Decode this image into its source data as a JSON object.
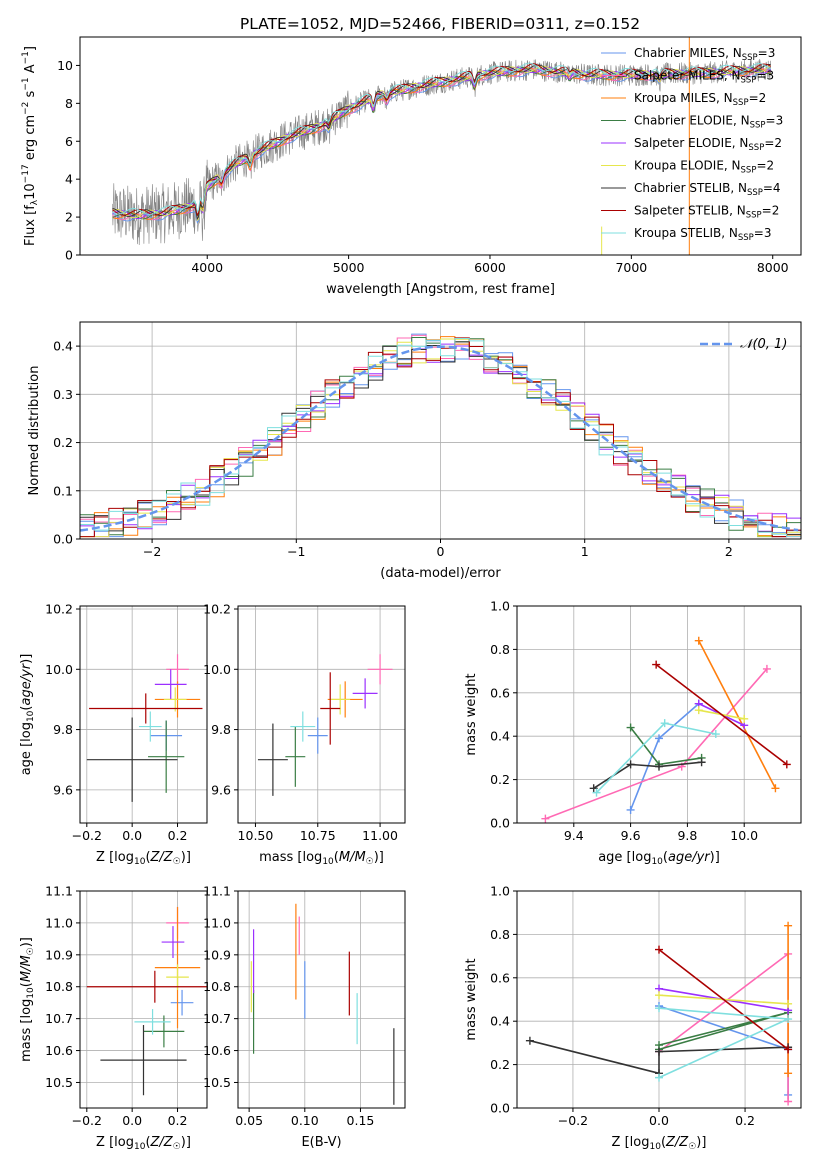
{
  "figure": {
    "title": "PLATE=1052, MJD=52466, FIBERID=0311, z=0.152"
  },
  "colors": {
    "models": [
      "#6495ed",
      "#ff69b4",
      "#ff7f0e",
      "#3a7d44",
      "#9b30ff",
      "#e6e64d",
      "#333333",
      "#aa0000",
      "#7fdfdf"
    ],
    "data": "#808080",
    "normal": "#6495ed",
    "grid": "#b0b0b0"
  },
  "chart_data": [
    {
      "id": "spectrum",
      "type": "line",
      "xlabel": "wavelength [Angstrom, rest frame]",
      "ylabel": "Flux [f_λ 10^-17 erg cm^-2 s^-1 A^-1]",
      "xlim": [
        3100,
        8200
      ],
      "ylim": [
        0,
        11.5
      ],
      "xticks": [
        4000,
        5000,
        6000,
        7000,
        8000
      ],
      "yticks": [
        0,
        2,
        4,
        6,
        8,
        10
      ],
      "grid": false,
      "legend": "right",
      "legend_entries": [
        "Chabrier MILES, N_SSP=3",
        "Salpeter MILES, N_SSP=3",
        "Kroupa MILES, N_SSP=2",
        "Chabrier ELODIE, N_SSP=3",
        "Salpeter ELODIE, N_SSP=2",
        "Kroupa ELODIE, N_SSP=2",
        "Chabrier STELIB, N_SSP=4",
        "Salpeter STELIB, N_SSP=2",
        "Kroupa STELIB, N_SSP=3"
      ],
      "continuum_points": [
        [
          3330,
          2.2
        ],
        [
          3500,
          2.1
        ],
        [
          3700,
          2.2
        ],
        [
          3900,
          2.6
        ],
        [
          4000,
          3.6
        ],
        [
          4200,
          4.8
        ],
        [
          4400,
          5.6
        ],
        [
          4600,
          6.3
        ],
        [
          4800,
          6.8
        ],
        [
          5000,
          7.7
        ],
        [
          5200,
          8.4
        ],
        [
          5500,
          8.9
        ],
        [
          6000,
          9.6
        ],
        [
          6300,
          9.8
        ],
        [
          6700,
          9.5
        ],
        [
          7000,
          9.5
        ],
        [
          7500,
          9.6
        ],
        [
          8000,
          9.8
        ]
      ]
    },
    {
      "id": "residuals",
      "type": "step",
      "xlabel": "(data-model)/error",
      "ylabel": "Normed distribution",
      "xlim": [
        -2.5,
        2.5
      ],
      "ylim": [
        0,
        0.45
      ],
      "xticks": [
        -2,
        -1,
        0,
        1,
        2
      ],
      "yticks": [
        0.0,
        0.1,
        0.2,
        0.3,
        0.4
      ],
      "grid": true,
      "legend": "top-right",
      "legend_entries": [
        "𝒩(0, 1)"
      ]
    },
    {
      "id": "age_vs_Z",
      "type": "errorbar",
      "xlabel": "Z [log10(Z/Z☉)]",
      "ylabel": "age [log10(age/yr)]",
      "xlim": [
        -0.23,
        0.33
      ],
      "ylim": [
        9.49,
        10.21
      ],
      "xticks": [
        -0.2,
        0.0,
        0.2
      ],
      "yticks": [
        9.6,
        9.8,
        10.0,
        10.2
      ],
      "grid": true,
      "points": [
        {
          "x": 0.15,
          "y": 9.78,
          "xerr": 0.07,
          "yerr": 0.05
        },
        {
          "x": 0.2,
          "y": 10.0,
          "xerr": 0.05,
          "yerr": 0.05
        },
        {
          "x": 0.2,
          "y": 9.9,
          "xerr": 0.1,
          "yerr": 0.06
        },
        {
          "x": 0.15,
          "y": 9.71,
          "xerr": 0.08,
          "yerr": 0.12
        },
        {
          "x": 0.17,
          "y": 9.95,
          "xerr": 0.07,
          "yerr": 0.05
        },
        {
          "x": 0.19,
          "y": 9.9,
          "xerr": 0.05,
          "yerr": 0.04
        },
        {
          "x": 0.0,
          "y": 9.7,
          "xerr": 0.2,
          "yerr": 0.14
        },
        {
          "x": 0.06,
          "y": 9.87,
          "xerr": 0.25,
          "yerr": 0.05
        },
        {
          "x": 0.08,
          "y": 9.81,
          "xerr": 0.05,
          "yerr": 0.05
        }
      ]
    },
    {
      "id": "age_vs_mass",
      "type": "errorbar",
      "xlabel": "mass [log10(M/M☉)]",
      "ylabel": "",
      "xlim": [
        10.43,
        11.1
      ],
      "ylim": [
        9.49,
        10.21
      ],
      "xticks": [
        10.5,
        10.75,
        11.0
      ],
      "yticks": [
        9.6,
        9.8,
        10.0,
        10.2
      ],
      "grid": true,
      "points": [
        {
          "x": 10.75,
          "y": 9.78,
          "xerr": 0.04,
          "yerr": 0.06
        },
        {
          "x": 11.0,
          "y": 10.0,
          "xerr": 0.05,
          "yerr": 0.05
        },
        {
          "x": 10.86,
          "y": 9.9,
          "xerr": 0.07,
          "yerr": 0.06
        },
        {
          "x": 10.66,
          "y": 9.71,
          "xerr": 0.04,
          "yerr": 0.1
        },
        {
          "x": 10.94,
          "y": 9.92,
          "xerr": 0.05,
          "yerr": 0.05
        },
        {
          "x": 10.84,
          "y": 9.9,
          "xerr": 0.04,
          "yerr": 0.05
        },
        {
          "x": 10.57,
          "y": 9.7,
          "xerr": 0.06,
          "yerr": 0.12
        },
        {
          "x": 10.8,
          "y": 9.87,
          "xerr": 0.04,
          "yerr": 0.12
        },
        {
          "x": 10.69,
          "y": 9.81,
          "xerr": 0.05,
          "yerr": 0.05
        }
      ]
    },
    {
      "id": "weight_vs_age",
      "type": "line",
      "xlabel": "age [log10(age/yr)]",
      "ylabel": "mass weight",
      "xlim": [
        9.2,
        10.2
      ],
      "ylim": [
        0,
        1.0
      ],
      "xticks": [
        9.4,
        9.6,
        9.8,
        10.0
      ],
      "yticks": [
        0.0,
        0.2,
        0.4,
        0.6,
        0.8,
        1.0
      ],
      "grid": true,
      "series": [
        {
          "x": [
            9.6,
            9.7,
            9.84
          ],
          "y": [
            0.06,
            0.39,
            0.55
          ]
        },
        {
          "x": [
            9.3,
            9.78,
            10.08
          ],
          "y": [
            0.02,
            0.26,
            0.71
          ]
        },
        {
          "x": [
            9.84,
            10.11
          ],
          "y": [
            0.84,
            0.16
          ]
        },
        {
          "x": [
            9.6,
            9.7,
            9.85
          ],
          "y": [
            0.44,
            0.27,
            0.3
          ]
        },
        {
          "x": [
            9.84,
            10.0
          ],
          "y": [
            0.55,
            0.45
          ]
        },
        {
          "x": [
            9.84,
            10.0
          ],
          "y": [
            0.52,
            0.48
          ]
        },
        {
          "x": [
            9.47,
            9.6,
            9.7,
            9.85
          ],
          "y": [
            0.16,
            0.27,
            0.26,
            0.28
          ]
        },
        {
          "x": [
            9.69,
            10.15
          ],
          "y": [
            0.73,
            0.27
          ]
        },
        {
          "x": [
            9.48,
            9.72,
            9.9
          ],
          "y": [
            0.14,
            0.46,
            0.41
          ]
        }
      ]
    },
    {
      "id": "mass_vs_Z",
      "type": "errorbar",
      "xlabel": "Z [log10(Z/Z☉)]",
      "ylabel": "mass [log10(M/M☉)]",
      "xlim": [
        -0.23,
        0.33
      ],
      "ylim": [
        10.42,
        11.1
      ],
      "xticks": [
        -0.2,
        0.0,
        0.2
      ],
      "yticks": [
        10.5,
        10.6,
        10.7,
        10.8,
        10.9,
        11.0,
        11.1
      ],
      "grid": true,
      "points": [
        {
          "x": 0.22,
          "y": 10.75,
          "xerr": 0.05,
          "yerr": 0.04
        },
        {
          "x": 0.2,
          "y": 11.0,
          "xerr": 0.05,
          "yerr": 0.05
        },
        {
          "x": 0.2,
          "y": 10.86,
          "xerr": 0.1,
          "yerr": 0.19
        },
        {
          "x": 0.14,
          "y": 10.66,
          "xerr": 0.09,
          "yerr": 0.05
        },
        {
          "x": 0.18,
          "y": 10.94,
          "xerr": 0.05,
          "yerr": 0.05
        },
        {
          "x": 0.2,
          "y": 10.83,
          "xerr": 0.05,
          "yerr": 0.04
        },
        {
          "x": 0.05,
          "y": 10.57,
          "xerr": 0.19,
          "yerr": 0.11
        },
        {
          "x": 0.1,
          "y": 10.8,
          "xerr": 0.3,
          "yerr": 0.05
        },
        {
          "x": 0.09,
          "y": 10.69,
          "xerr": 0.08,
          "yerr": 0.04
        }
      ]
    },
    {
      "id": "mass_vs_ebv",
      "type": "errorbar",
      "xlabel": "E(B-V)",
      "ylabel": "",
      "xlim": [
        0.04,
        0.19
      ],
      "ylim": [
        10.42,
        11.1
      ],
      "xticks": [
        0.05,
        0.1,
        0.15
      ],
      "yticks": [
        10.5,
        10.6,
        10.7,
        10.8,
        10.9,
        11.0,
        11.1
      ],
      "grid": true,
      "points": [
        {
          "x": 0.1,
          "y": 10.79,
          "yerr": 0.09
        },
        {
          "x": 0.095,
          "y": 10.96,
          "yerr": 0.06
        },
        {
          "x": 0.092,
          "y": 10.91,
          "yerr": 0.15
        },
        {
          "x": 0.054,
          "y": 10.69,
          "yerr": 0.1
        },
        {
          "x": 0.054,
          "y": 10.88,
          "yerr": 0.1
        },
        {
          "x": 0.052,
          "y": 10.8,
          "yerr": 0.08
        },
        {
          "x": 0.18,
          "y": 10.55,
          "yerr": 0.12
        },
        {
          "x": 0.14,
          "y": 10.81,
          "yerr": 0.1
        },
        {
          "x": 0.147,
          "y": 10.7,
          "yerr": 0.08
        }
      ]
    },
    {
      "id": "weight_vs_Z",
      "type": "line",
      "xlabel": "Z [log10(Z/Z☉)]",
      "ylabel": "mass weight",
      "xlim": [
        -0.33,
        0.33
      ],
      "ylim": [
        0,
        1.0
      ],
      "xticks": [
        -0.2,
        0.0,
        0.2
      ],
      "yticks": [
        0.0,
        0.2,
        0.4,
        0.6,
        0.8,
        1.0
      ],
      "grid": true,
      "series": [
        {
          "x": [
            0.0,
            0.3,
            0.3
          ],
          "y": [
            0.47,
            0.27,
            0.06
          ]
        },
        {
          "x": [
            0.0,
            0.3,
            0.3
          ],
          "y": [
            0.26,
            0.71,
            0.03
          ]
        },
        {
          "x": [
            0.3,
            0.3
          ],
          "y": [
            0.84,
            0.16
          ]
        },
        {
          "x": [
            0.0,
            0.3,
            0.0
          ],
          "y": [
            0.29,
            0.44,
            0.27
          ]
        },
        {
          "x": [
            0.0,
            0.3
          ],
          "y": [
            0.55,
            0.45
          ]
        },
        {
          "x": [
            0.0,
            0.3
          ],
          "y": [
            0.52,
            0.48
          ]
        },
        {
          "x": [
            -0.3,
            0.0,
            0.0,
            0.3
          ],
          "y": [
            0.31,
            0.16,
            0.26,
            0.28
          ]
        },
        {
          "x": [
            0.0,
            0.3
          ],
          "y": [
            0.73,
            0.27
          ]
        },
        {
          "x": [
            0.0,
            0.3,
            0.0
          ],
          "y": [
            0.14,
            0.41,
            0.46
          ]
        }
      ]
    }
  ]
}
